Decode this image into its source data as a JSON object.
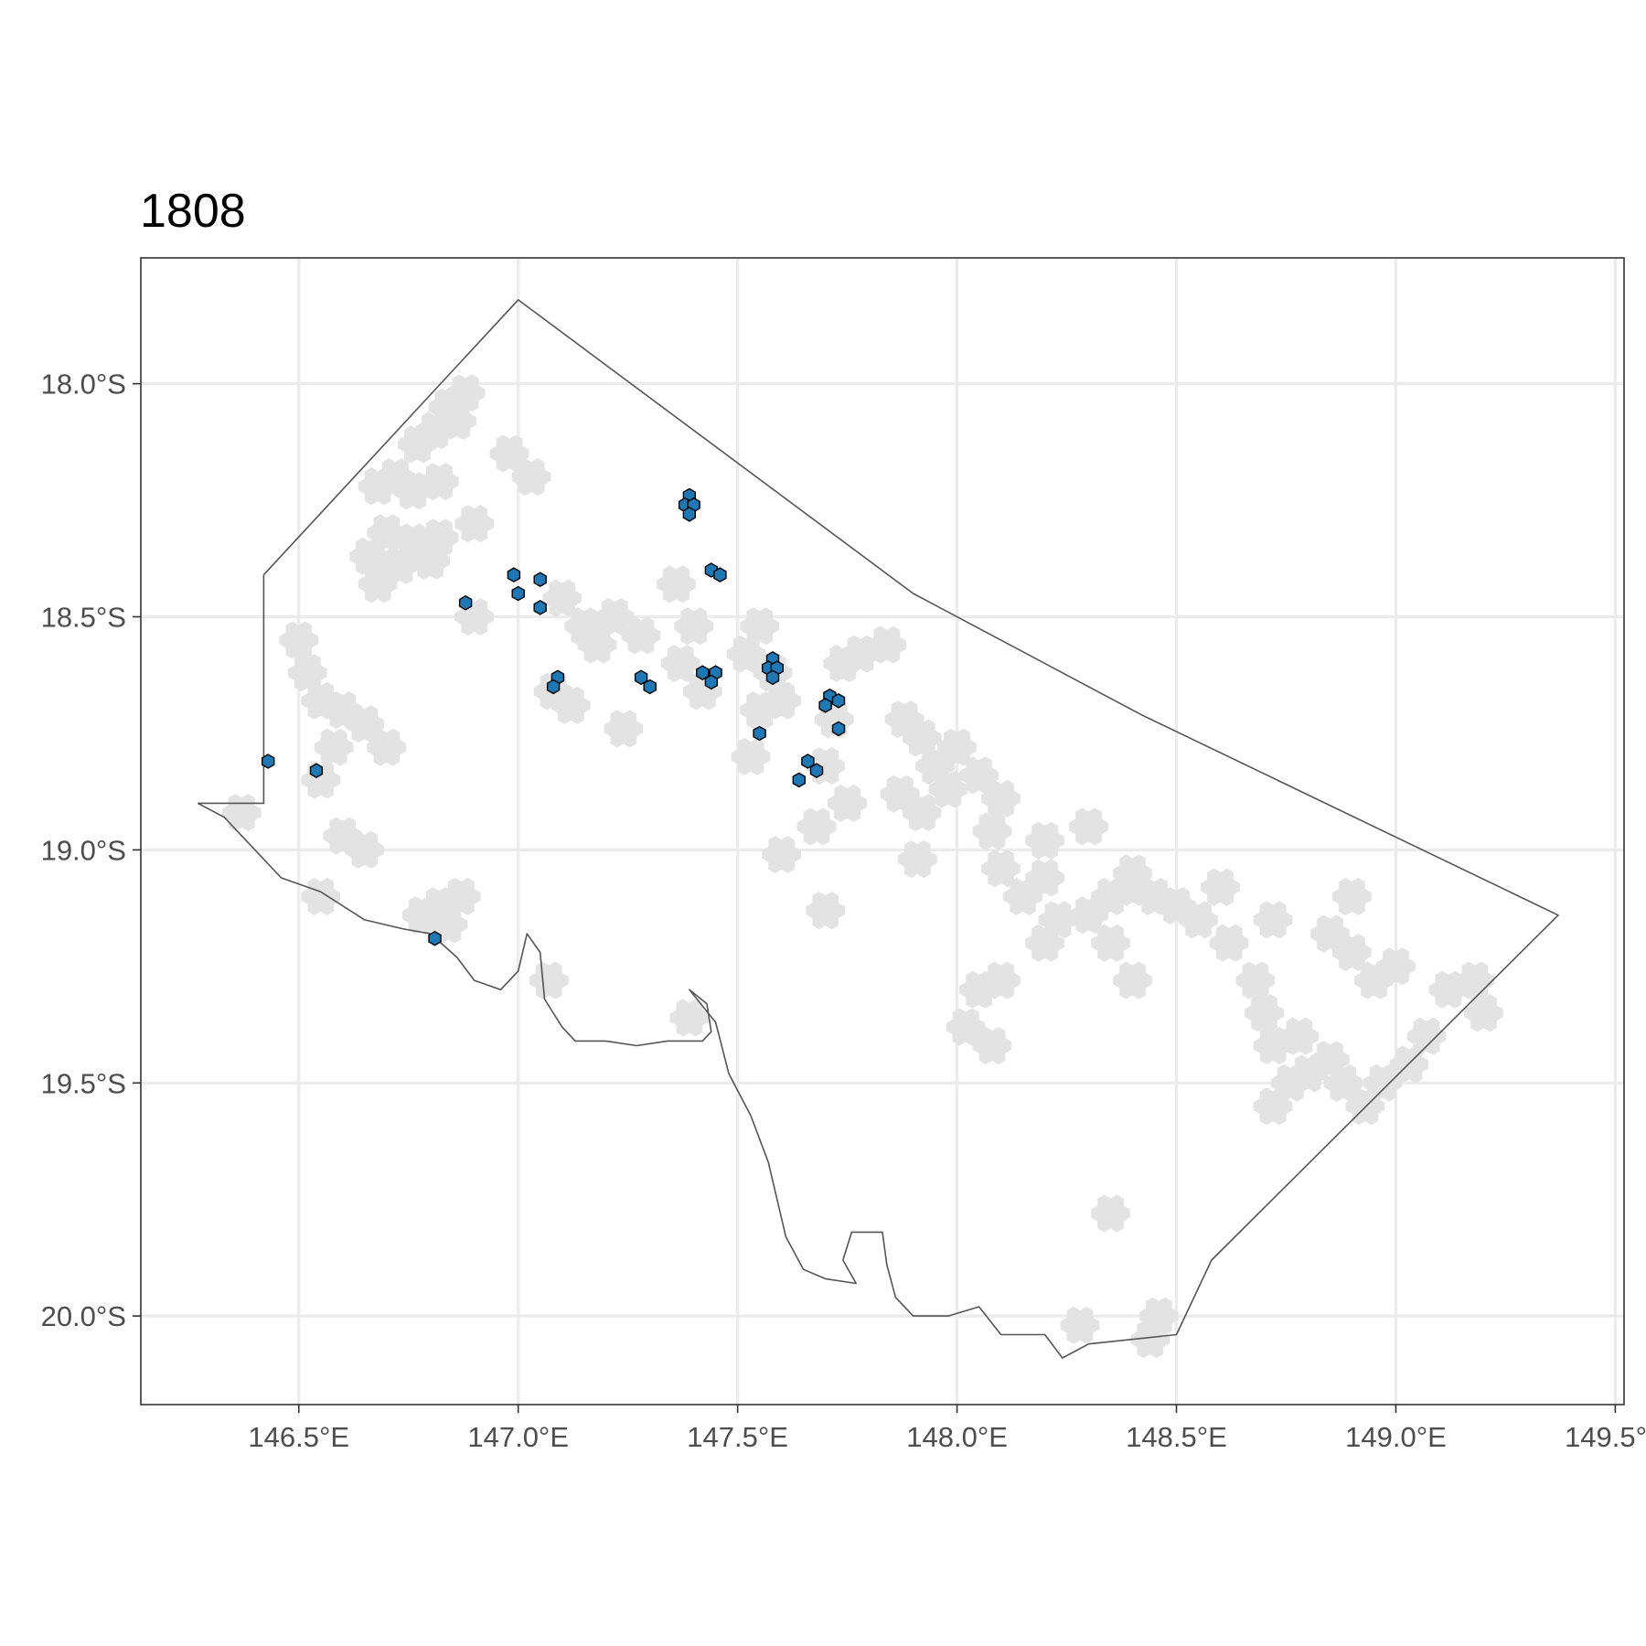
{
  "title": "1808",
  "colors": {
    "background_cell": "#e3e3e3",
    "observation_cell": "#1f77b4",
    "boundary": "#555555",
    "grid": "#ebebeb"
  },
  "chart_data": {
    "type": "map",
    "xlim": [
      146.14,
      149.52
    ],
    "ylim": [
      -20.19,
      -17.73
    ],
    "x_ticks": [
      146.5,
      147.0,
      147.5,
      148.0,
      148.5,
      149.0,
      149.5
    ],
    "y_ticks": [
      -18.0,
      -18.5,
      -19.0,
      -19.5,
      -20.0
    ],
    "x_tick_labels": [
      "146.5°E",
      "147.0°E",
      "147.5°E",
      "148.0°E",
      "148.5°E",
      "149.0°E",
      "149.5°E"
    ],
    "y_tick_labels": [
      "18.0°S",
      "18.5°S",
      "19.0°S",
      "19.5°S",
      "20.0°S"
    ],
    "grid": true,
    "legend": "none",
    "boundary": {
      "outer": [
        [
          146.42,
          -18.41
        ],
        [
          147.0,
          -17.82
        ],
        [
          147.9,
          -18.45
        ],
        [
          148.42,
          -18.71
        ],
        [
          149.37,
          -19.14
        ],
        [
          148.58,
          -19.88
        ],
        [
          148.5,
          -20.04
        ],
        [
          148.3,
          -20.06
        ]
      ],
      "west_notch": [
        [
          146.42,
          -18.41
        ],
        [
          146.42,
          -18.9
        ],
        [
          146.27,
          -18.9
        ]
      ],
      "coast": [
        [
          146.27,
          -18.9
        ],
        [
          146.33,
          -18.93
        ],
        [
          146.38,
          -18.98
        ],
        [
          146.46,
          -19.06
        ],
        [
          146.55,
          -19.09
        ],
        [
          146.65,
          -19.15
        ],
        [
          146.74,
          -19.17
        ],
        [
          146.8,
          -19.18
        ],
        [
          146.86,
          -19.23
        ],
        [
          146.9,
          -19.28
        ],
        [
          146.96,
          -19.3
        ],
        [
          147.0,
          -19.26
        ],
        [
          147.02,
          -19.18
        ],
        [
          147.05,
          -19.22
        ],
        [
          147.06,
          -19.32
        ],
        [
          147.1,
          -19.38
        ],
        [
          147.13,
          -19.41
        ],
        [
          147.2,
          -19.41
        ],
        [
          147.27,
          -19.42
        ],
        [
          147.34,
          -19.41
        ],
        [
          147.42,
          -19.41
        ],
        [
          147.44,
          -19.39
        ],
        [
          147.43,
          -19.33
        ],
        [
          147.39,
          -19.3
        ],
        [
          147.45,
          -19.37
        ],
        [
          147.48,
          -19.48
        ],
        [
          147.53,
          -19.57
        ],
        [
          147.57,
          -19.67
        ],
        [
          147.59,
          -19.75
        ],
        [
          147.61,
          -19.83
        ],
        [
          147.65,
          -19.9
        ],
        [
          147.7,
          -19.92
        ],
        [
          147.77,
          -19.93
        ],
        [
          147.74,
          -19.88
        ],
        [
          147.76,
          -19.82
        ],
        [
          147.83,
          -19.82
        ],
        [
          147.84,
          -19.89
        ],
        [
          147.86,
          -19.96
        ],
        [
          147.9,
          -20.0
        ],
        [
          147.98,
          -20.0
        ],
        [
          148.05,
          -19.98
        ],
        [
          148.1,
          -20.04
        ],
        [
          148.2,
          -20.04
        ],
        [
          148.24,
          -20.09
        ],
        [
          148.3,
          -20.06
        ]
      ]
    },
    "background_cells": [
      [
        146.88,
        -18.02
      ],
      [
        146.84,
        -18.05
      ],
      [
        146.86,
        -18.08
      ],
      [
        146.81,
        -18.1
      ],
      [
        146.77,
        -18.13
      ],
      [
        146.72,
        -18.2
      ],
      [
        146.68,
        -18.22
      ],
      [
        146.76,
        -18.23
      ],
      [
        146.82,
        -18.21
      ],
      [
        146.7,
        -18.32
      ],
      [
        146.76,
        -18.34
      ],
      [
        146.82,
        -18.33
      ],
      [
        146.9,
        -18.3
      ],
      [
        146.66,
        -18.37
      ],
      [
        146.73,
        -18.39
      ],
      [
        146.8,
        -18.38
      ],
      [
        146.68,
        -18.43
      ],
      [
        146.98,
        -18.15
      ],
      [
        147.03,
        -18.2
      ],
      [
        146.9,
        -18.5
      ],
      [
        147.1,
        -18.46
      ],
      [
        147.15,
        -18.52
      ],
      [
        147.22,
        -18.5
      ],
      [
        147.18,
        -18.56
      ],
      [
        147.28,
        -18.54
      ],
      [
        147.08,
        -18.66
      ],
      [
        147.12,
        -18.69
      ],
      [
        147.24,
        -18.74
      ],
      [
        147.37,
        -18.6
      ],
      [
        147.4,
        -18.52
      ],
      [
        147.42,
        -18.66
      ],
      [
        147.36,
        -18.43
      ],
      [
        147.55,
        -18.52
      ],
      [
        147.52,
        -18.58
      ],
      [
        147.58,
        -18.62
      ],
      [
        147.55,
        -18.7
      ],
      [
        147.6,
        -18.68
      ],
      [
        147.53,
        -18.8
      ],
      [
        147.74,
        -18.6
      ],
      [
        147.78,
        -18.58
      ],
      [
        147.72,
        -18.72
      ],
      [
        147.7,
        -18.82
      ],
      [
        147.75,
        -18.9
      ],
      [
        147.68,
        -18.95
      ],
      [
        147.88,
        -18.72
      ],
      [
        147.92,
        -18.76
      ],
      [
        147.95,
        -18.82
      ],
      [
        147.98,
        -18.87
      ],
      [
        147.87,
        -18.88
      ],
      [
        147.92,
        -18.92
      ],
      [
        147.91,
        -19.02
      ],
      [
        147.84,
        -18.56
      ],
      [
        148.05,
        -18.84
      ],
      [
        148.1,
        -18.89
      ],
      [
        148.08,
        -18.96
      ],
      [
        148.1,
        -19.04
      ],
      [
        148.15,
        -19.1
      ],
      [
        148.2,
        -19.06
      ],
      [
        148.23,
        -19.15
      ],
      [
        148.2,
        -19.2
      ],
      [
        148.3,
        -19.14
      ],
      [
        148.35,
        -19.1
      ],
      [
        148.4,
        -19.08
      ],
      [
        148.45,
        -19.1
      ],
      [
        148.5,
        -19.12
      ],
      [
        148.55,
        -19.15
      ],
      [
        148.62,
        -19.2
      ],
      [
        148.68,
        -19.28
      ],
      [
        148.7,
        -19.35
      ],
      [
        148.72,
        -19.42
      ],
      [
        148.78,
        -19.4
      ],
      [
        148.8,
        -19.48
      ],
      [
        148.76,
        -19.5
      ],
      [
        148.72,
        -19.55
      ],
      [
        148.85,
        -19.45
      ],
      [
        148.88,
        -19.5
      ],
      [
        148.93,
        -19.55
      ],
      [
        148.97,
        -19.5
      ],
      [
        149.03,
        -19.46
      ],
      [
        149.07,
        -19.4
      ],
      [
        149.12,
        -19.3
      ],
      [
        149.18,
        -19.28
      ],
      [
        149.2,
        -19.35
      ],
      [
        148.05,
        -19.3
      ],
      [
        148.02,
        -19.38
      ],
      [
        148.08,
        -19.42
      ],
      [
        148.1,
        -19.28
      ],
      [
        148.35,
        -19.2
      ],
      [
        148.4,
        -19.28
      ],
      [
        148.4,
        -19.05
      ],
      [
        148.3,
        -18.95
      ],
      [
        148.2,
        -18.98
      ],
      [
        148.6,
        -19.08
      ],
      [
        148.72,
        -19.15
      ],
      [
        148.85,
        -19.18
      ],
      [
        148.9,
        -19.22
      ],
      [
        148.95,
        -19.28
      ],
      [
        149.0,
        -19.25
      ],
      [
        148.9,
        -19.1
      ],
      [
        148.0,
        -18.78
      ],
      [
        147.7,
        -19.13
      ],
      [
        147.6,
        -19.01
      ],
      [
        147.39,
        -19.36
      ],
      [
        148.35,
        -19.78
      ],
      [
        148.46,
        -20.0
      ],
      [
        148.44,
        -20.05
      ],
      [
        148.28,
        -20.02
      ],
      [
        146.5,
        -18.55
      ],
      [
        146.52,
        -18.62
      ],
      [
        146.55,
        -18.68
      ],
      [
        146.6,
        -18.7
      ],
      [
        146.65,
        -18.73
      ],
      [
        146.7,
        -18.78
      ],
      [
        146.58,
        -18.78
      ],
      [
        146.55,
        -18.85
      ],
      [
        146.37,
        -18.92
      ],
      [
        146.6,
        -18.97
      ],
      [
        146.65,
        -19.0
      ],
      [
        146.55,
        -19.1
      ],
      [
        146.82,
        -19.12
      ],
      [
        146.87,
        -19.1
      ],
      [
        146.84,
        -19.16
      ],
      [
        146.78,
        -19.14
      ],
      [
        147.07,
        -19.28
      ]
    ],
    "observation_cells": [
      [
        147.39,
        -18.24
      ],
      [
        147.38,
        -18.26
      ],
      [
        147.4,
        -18.26
      ],
      [
        147.39,
        -18.28
      ],
      [
        147.44,
        -18.4
      ],
      [
        147.46,
        -18.41
      ],
      [
        146.99,
        -18.41
      ],
      [
        147.05,
        -18.42
      ],
      [
        147.0,
        -18.45
      ],
      [
        147.05,
        -18.48
      ],
      [
        146.88,
        -18.47
      ],
      [
        147.58,
        -18.59
      ],
      [
        147.57,
        -18.61
      ],
      [
        147.59,
        -18.61
      ],
      [
        147.58,
        -18.63
      ],
      [
        147.42,
        -18.62
      ],
      [
        147.45,
        -18.62
      ],
      [
        147.44,
        -18.64
      ],
      [
        147.28,
        -18.63
      ],
      [
        147.3,
        -18.65
      ],
      [
        147.09,
        -18.63
      ],
      [
        147.08,
        -18.65
      ],
      [
        147.71,
        -18.67
      ],
      [
        147.73,
        -18.68
      ],
      [
        147.7,
        -18.69
      ],
      [
        147.73,
        -18.74
      ],
      [
        147.55,
        -18.75
      ],
      [
        146.43,
        -18.81
      ],
      [
        146.54,
        -18.83
      ],
      [
        147.66,
        -18.81
      ],
      [
        147.68,
        -18.83
      ],
      [
        147.64,
        -18.85
      ],
      [
        146.81,
        -19.19
      ]
    ]
  }
}
